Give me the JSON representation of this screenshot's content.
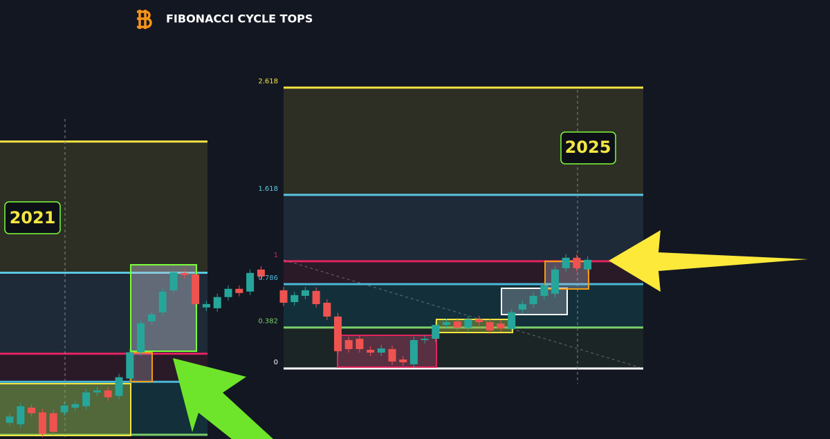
{
  "header": {
    "title": "FIBONACCI CYCLE TOPS"
  },
  "chart_data": [
    {
      "type": "candlestick",
      "annotation": "2021",
      "ylim": [
        0.35,
        3.17
      ],
      "levels": [
        0.382,
        0.786,
        1,
        1.618,
        2.618
      ],
      "level_colors": [
        "#7ccf6a",
        "#4ab8d8",
        "#e0245e",
        "#5bc8e0",
        "#f5e642"
      ],
      "zone_colors": [
        "#13303a",
        "#2a1a28",
        "#1f2a38",
        "#2d2f25"
      ],
      "up_color": "#26a69a",
      "down_color": "#ef5350",
      "open": [
        0.474,
        0.463,
        0.589,
        0.553,
        0.547,
        0.553,
        0.589,
        0.6,
        0.705,
        0.721,
        0.679,
        0.811,
        1.011,
        1.247,
        1.316,
        1.484,
        1.616,
        1.605,
        1.353,
        1.347,
        1.432,
        1.495,
        1.474,
        1.642
      ],
      "close": [
        0.521,
        0.6,
        0.547,
        0.389,
        0.405,
        0.605,
        0.616,
        0.705,
        0.721,
        0.668,
        0.821,
        1.011,
        1.232,
        1.3,
        1.474,
        1.621,
        1.6,
        1.379,
        1.379,
        1.432,
        1.495,
        1.463,
        1.616,
        1.589
      ]
    },
    {
      "type": "candlestick",
      "annotation": "2025",
      "ylim": [
        -0.045,
        2.79
      ],
      "yticks": [
        0,
        0.382,
        0.786,
        1,
        1.618,
        2.618
      ],
      "levels": [
        0,
        0.382,
        0.786,
        1,
        1.618,
        2.618
      ],
      "level_colors": [
        "#ffffff",
        "#7ccf6a",
        "#4ab8d8",
        "#e0245e",
        "#5bc8e0",
        "#f5e642"
      ],
      "zone_colors": [
        "#1c2526",
        "#13303a",
        "#2a1a28",
        "#1f2a38",
        "#2d2f25"
      ],
      "up_color": "#26a69a",
      "down_color": "#ef5350",
      "open": [
        0.729,
        0.619,
        0.677,
        0.723,
        0.613,
        0.484,
        0.265,
        0.277,
        0.174,
        0.148,
        0.181,
        0.084,
        0.039,
        0.265,
        0.277,
        0.406,
        0.439,
        0.381,
        0.458,
        0.432,
        0.419,
        0.368,
        0.548,
        0.6,
        0.677,
        0.697,
        0.935,
        1.032,
        0.923
      ],
      "close": [
        0.613,
        0.684,
        0.729,
        0.6,
        0.484,
        0.161,
        0.181,
        0.181,
        0.148,
        0.187,
        0.065,
        0.058,
        0.265,
        0.277,
        0.406,
        0.432,
        0.381,
        0.458,
        0.432,
        0.355,
        0.374,
        0.523,
        0.6,
        0.677,
        0.774,
        0.923,
        1.032,
        0.935,
        1.013
      ]
    }
  ]
}
